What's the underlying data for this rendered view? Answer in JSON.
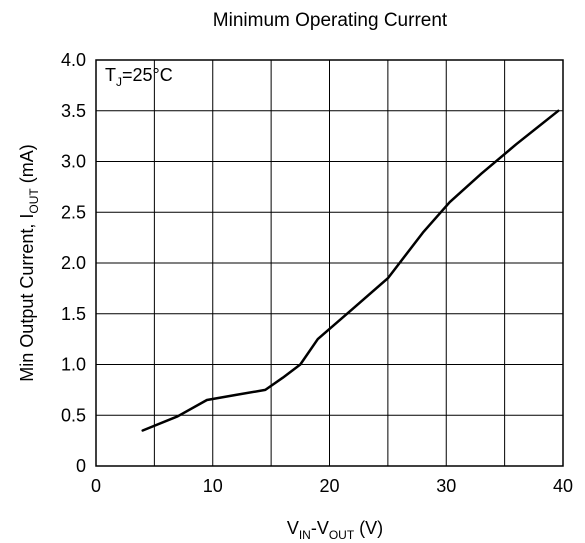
{
  "chart_data": {
    "type": "line",
    "title": "Minimum Operating Current",
    "xlabel": {
      "base": "V",
      "sub1": "IN",
      "sep": "-V",
      "sub2": "OUT",
      "tail": " (V)"
    },
    "ylabel": {
      "prefix": "Min Output Current, I",
      "sub": "OUT",
      "tail": " (mA)"
    },
    "annotation": {
      "base": "T",
      "sub": "J",
      "tail": "=25°C"
    },
    "xlim": [
      0,
      40
    ],
    "ylim": [
      0,
      4.0
    ],
    "grid": true,
    "x_ticks": [
      {
        "value": 0,
        "label": "0"
      },
      {
        "value": 10,
        "label": "10"
      },
      {
        "value": 20,
        "label": "20"
      },
      {
        "value": 30,
        "label": "30"
      },
      {
        "value": 40,
        "label": "40"
      }
    ],
    "y_ticks": [
      {
        "value": 0,
        "label": "0"
      },
      {
        "value": 0.5,
        "label": "0.5"
      },
      {
        "value": 1.0,
        "label": "1.0"
      },
      {
        "value": 1.5,
        "label": "1.5"
      },
      {
        "value": 2.0,
        "label": "2.0"
      },
      {
        "value": 2.5,
        "label": "2.5"
      },
      {
        "value": 3.0,
        "label": "3.0"
      },
      {
        "value": 3.5,
        "label": "3.5"
      },
      {
        "value": 4.0,
        "label": "4.0"
      }
    ],
    "series": [
      {
        "x": [
          4,
          7,
          9.5,
          12,
          14.5,
          16,
          17.5,
          19,
          22,
          25,
          28,
          30.3,
          33,
          36,
          39.6
        ],
        "y": [
          0.35,
          0.49,
          0.65,
          0.7,
          0.75,
          0.87,
          1.0,
          1.25,
          1.55,
          1.85,
          2.3,
          2.6,
          2.88,
          3.17,
          3.5
        ]
      }
    ]
  },
  "colors": {
    "line": "#000000",
    "grid": "#000000",
    "background": "#ffffff"
  }
}
